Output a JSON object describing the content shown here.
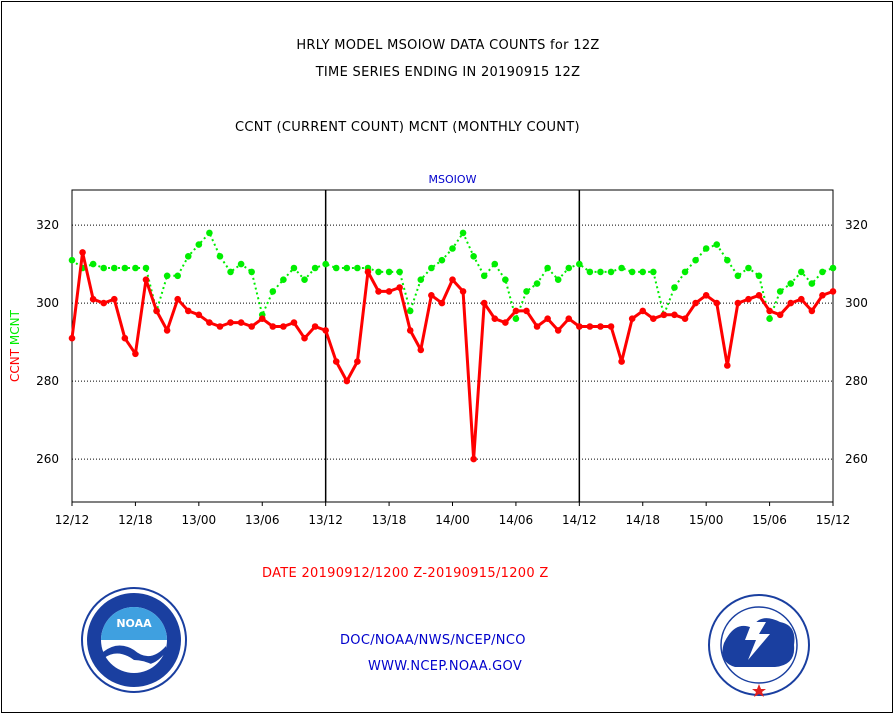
{
  "header": {
    "title_line1": "HRLY MODEL MSOIOW DATA COUNTS for 12Z",
    "title_line2": "TIME SERIES ENDING IN 20190915 12Z",
    "title_line3": "CCNT (CURRENT COUNT) MCNT (MONTHLY COUNT)"
  },
  "footer": {
    "date_range": "DATE 20190912/1200 Z-20190915/1200 Z",
    "org_line": "DOC/NOAA/NWS/NCEP/NCO",
    "url_line": "WWW.NCEP.NOAA.GOV"
  },
  "logos": {
    "left": {
      "name": "NOAA",
      "ring_text": "NATIONAL OCEANIC AND ATMOSPHERIC ADMINISTRATION · U.S. DEPARTMENT OF COMMERCE"
    },
    "right": {
      "ring_text": "NATIONAL WEATHER SERVICE"
    }
  },
  "colors": {
    "ccnt": "#ff0000",
    "mcnt": "#00ee00",
    "panel_title": "#0000cc",
    "footer_text": "#0000cc"
  },
  "chart_data": {
    "type": "line",
    "panel_title": "MSOIOW",
    "ylabel_left_parts": [
      {
        "text": "CCNT",
        "color": "#ff0000"
      },
      {
        "text": "MCNT",
        "color": "#00ee00"
      }
    ],
    "x_ticks": [
      "12/12",
      "12/18",
      "13/00",
      "13/06",
      "13/12",
      "13/18",
      "14/00",
      "14/06",
      "14/12",
      "14/18",
      "15/00",
      "15/06",
      "15/12"
    ],
    "y_ticks": [
      260,
      280,
      300,
      320
    ],
    "ylim": [
      249,
      329
    ],
    "xlim_hours": [
      0,
      72
    ],
    "grid": "y-dotted",
    "day_separators_hours": [
      24,
      48
    ],
    "series": [
      {
        "name": "CCNT",
        "color": "#ff0000",
        "style": "solid",
        "values": [
          291,
          313,
          301,
          300,
          301,
          291,
          287,
          306,
          298,
          293,
          301,
          298,
          297,
          295,
          294,
          295,
          295,
          294,
          296,
          294,
          294,
          295,
          291,
          294,
          293,
          285,
          280,
          285,
          308,
          303,
          303,
          304,
          293,
          288,
          302,
          300,
          306,
          303,
          260,
          300,
          296,
          295,
          298,
          298,
          294,
          296,
          293,
          296,
          294,
          294,
          294,
          294,
          285,
          296,
          298,
          296,
          297,
          297,
          296,
          300,
          302,
          300,
          284,
          300,
          301,
          302,
          298,
          297,
          300,
          301,
          298,
          302,
          303
        ]
      },
      {
        "name": "MCNT",
        "color": "#00ee00",
        "style": "dotted",
        "values": [
          311,
          309,
          310,
          309,
          309,
          309,
          309,
          309,
          298,
          307,
          307,
          312,
          315,
          318,
          312,
          308,
          310,
          308,
          297,
          303,
          306,
          309,
          306,
          309,
          310,
          309,
          309,
          309,
          309,
          308,
          308,
          308,
          298,
          306,
          309,
          311,
          314,
          318,
          312,
          307,
          310,
          306,
          296,
          303,
          305,
          309,
          306,
          309,
          310,
          308,
          308,
          308,
          309,
          308,
          308,
          308,
          297,
          304,
          308,
          311,
          314,
          315,
          311,
          307,
          309,
          307,
          296,
          303,
          305,
          308,
          305,
          308,
          309
        ]
      }
    ]
  }
}
